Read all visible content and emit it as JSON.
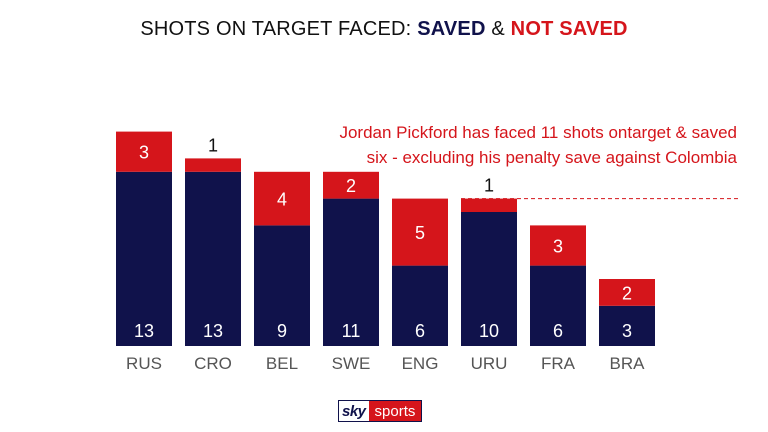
{
  "title": {
    "prefix": "SHOTS ON TARGET FACED: ",
    "saved": "SAVED",
    "amp": " & ",
    "not_saved": "NOT SAVED"
  },
  "annotation": {
    "line1": "Jordan Pickford has faced 11 shots ontarget & saved",
    "line2": "six - excluding his penalty save against Colombia"
  },
  "logo": {
    "sky": "sky",
    "sports": "sports"
  },
  "colors": {
    "saved": "#10124b",
    "not_saved": "#d5151b",
    "reference_line": "#d5151b"
  },
  "chart_data": {
    "type": "bar",
    "stacked": true,
    "categories": [
      "RUS",
      "CRO",
      "BEL",
      "SWE",
      "ENG",
      "URU",
      "FRA",
      "BRA"
    ],
    "series": [
      {
        "name": "SAVED",
        "values": [
          13,
          13,
          9,
          11,
          6,
          10,
          6,
          3
        ]
      },
      {
        "name": "NOT SAVED",
        "values": [
          3,
          1,
          4,
          2,
          5,
          1,
          3,
          2
        ]
      }
    ],
    "title": "SHOTS ON TARGET FACED: SAVED & NOT SAVED",
    "xlabel": "",
    "ylabel": "",
    "ylim": [
      0,
      16
    ],
    "grid": false,
    "reference_line": {
      "value": 11,
      "style": "dashed",
      "from_category": "URU"
    }
  }
}
